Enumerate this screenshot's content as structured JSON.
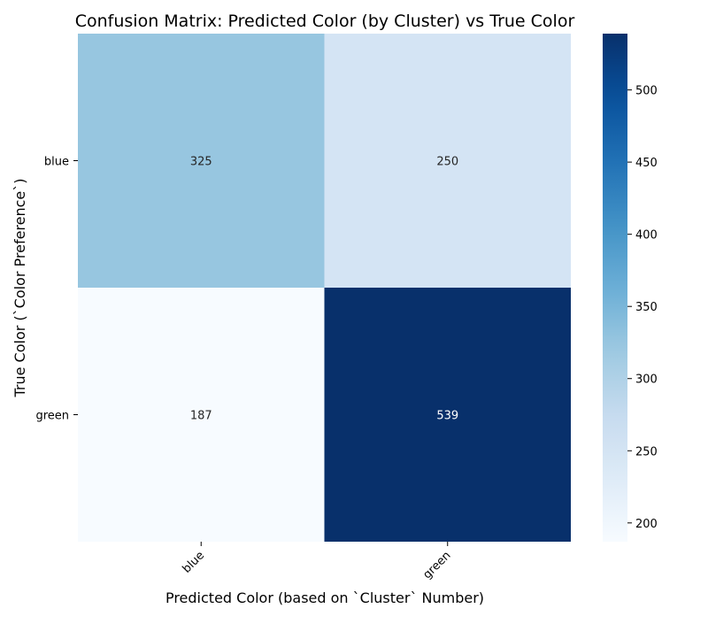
{
  "chart_data": {
    "type": "heatmap",
    "title": "Confusion Matrix: Predicted Color (by Cluster) vs True Color",
    "xlabel": "Predicted Color (based on `Cluster` Number)",
    "ylabel": "True Color (`Color Preference`)",
    "x_categories": [
      "blue",
      "green"
    ],
    "y_categories": [
      "blue",
      "green"
    ],
    "values": [
      [
        325,
        250
      ],
      [
        187,
        539
      ]
    ],
    "colormap": "Blues",
    "colorbar": {
      "min": 187,
      "max": 539,
      "ticks": [
        200,
        250,
        300,
        350,
        400,
        450,
        500
      ]
    },
    "annotations": true,
    "grid": false
  }
}
